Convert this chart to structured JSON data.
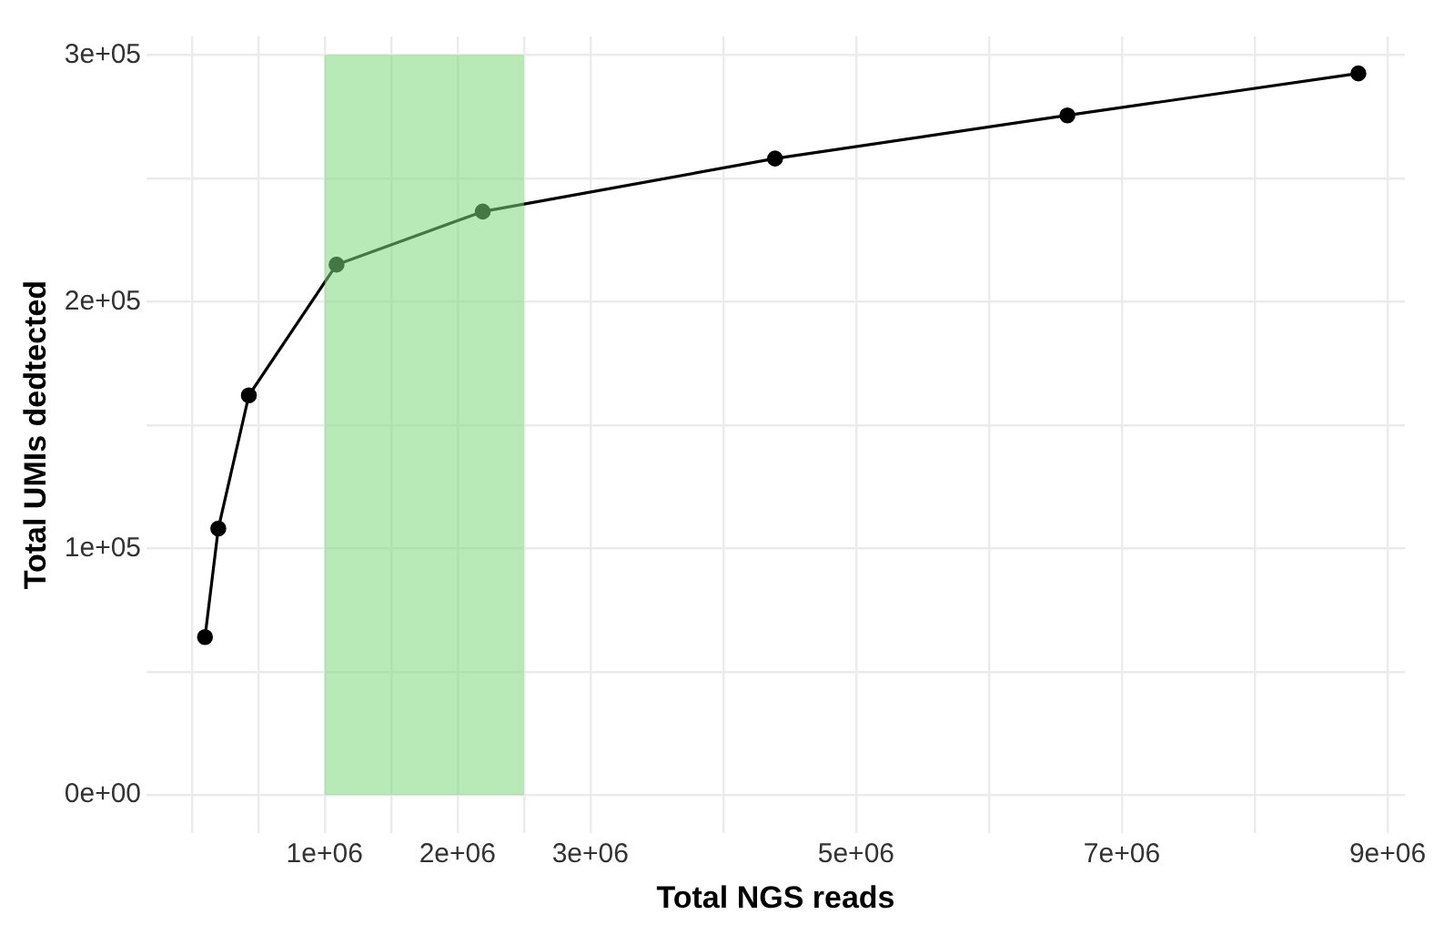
{
  "chart_data": {
    "type": "line",
    "xlabel": "Total NGS reads",
    "ylabel": "Total UMIs dedtected",
    "x": [
      100000,
      200000,
      430000,
      1090000,
      2190000,
      4390000,
      6590000,
      8780000
    ],
    "series": [
      {
        "color": "#000000",
        "values": [
          64000,
          108000,
          162000,
          215000,
          236500,
          258000,
          275500,
          292500
        ]
      }
    ],
    "xlim": [
      -340000,
      9130000
    ],
    "ylim": [
      -15500,
      307500
    ],
    "xticks": [
      {
        "value": 0,
        "label": null
      },
      {
        "value": 500000,
        "label": null
      },
      {
        "value": 1000000,
        "label": "1e+06"
      },
      {
        "value": 1500000,
        "label": null
      },
      {
        "value": 2000000,
        "label": "2e+06"
      },
      {
        "value": 2500000,
        "label": null
      },
      {
        "value": 3000000,
        "label": "3e+06"
      },
      {
        "value": 4000000,
        "label": null
      },
      {
        "value": 5000000,
        "label": "5e+06"
      },
      {
        "value": 6000000,
        "label": null
      },
      {
        "value": 7000000,
        "label": "7e+06"
      },
      {
        "value": 8000000,
        "label": null
      },
      {
        "value": 9000000,
        "label": "9e+06"
      }
    ],
    "yticks": [
      {
        "value": 0,
        "label": "0e+00"
      },
      {
        "value": 50000,
        "label": null
      },
      {
        "value": 100000,
        "label": "1e+05"
      },
      {
        "value": 150000,
        "label": null
      },
      {
        "value": 200000,
        "label": "2e+05"
      },
      {
        "value": 250000,
        "label": null
      },
      {
        "value": 300000,
        "label": "3e+05"
      }
    ],
    "bands": [
      {
        "axis": "x",
        "from": 1000000,
        "to": 2500000,
        "color": "#7cd97c"
      }
    ],
    "grid": true,
    "marker": "circle",
    "line_style": "solid",
    "legend": false
  }
}
